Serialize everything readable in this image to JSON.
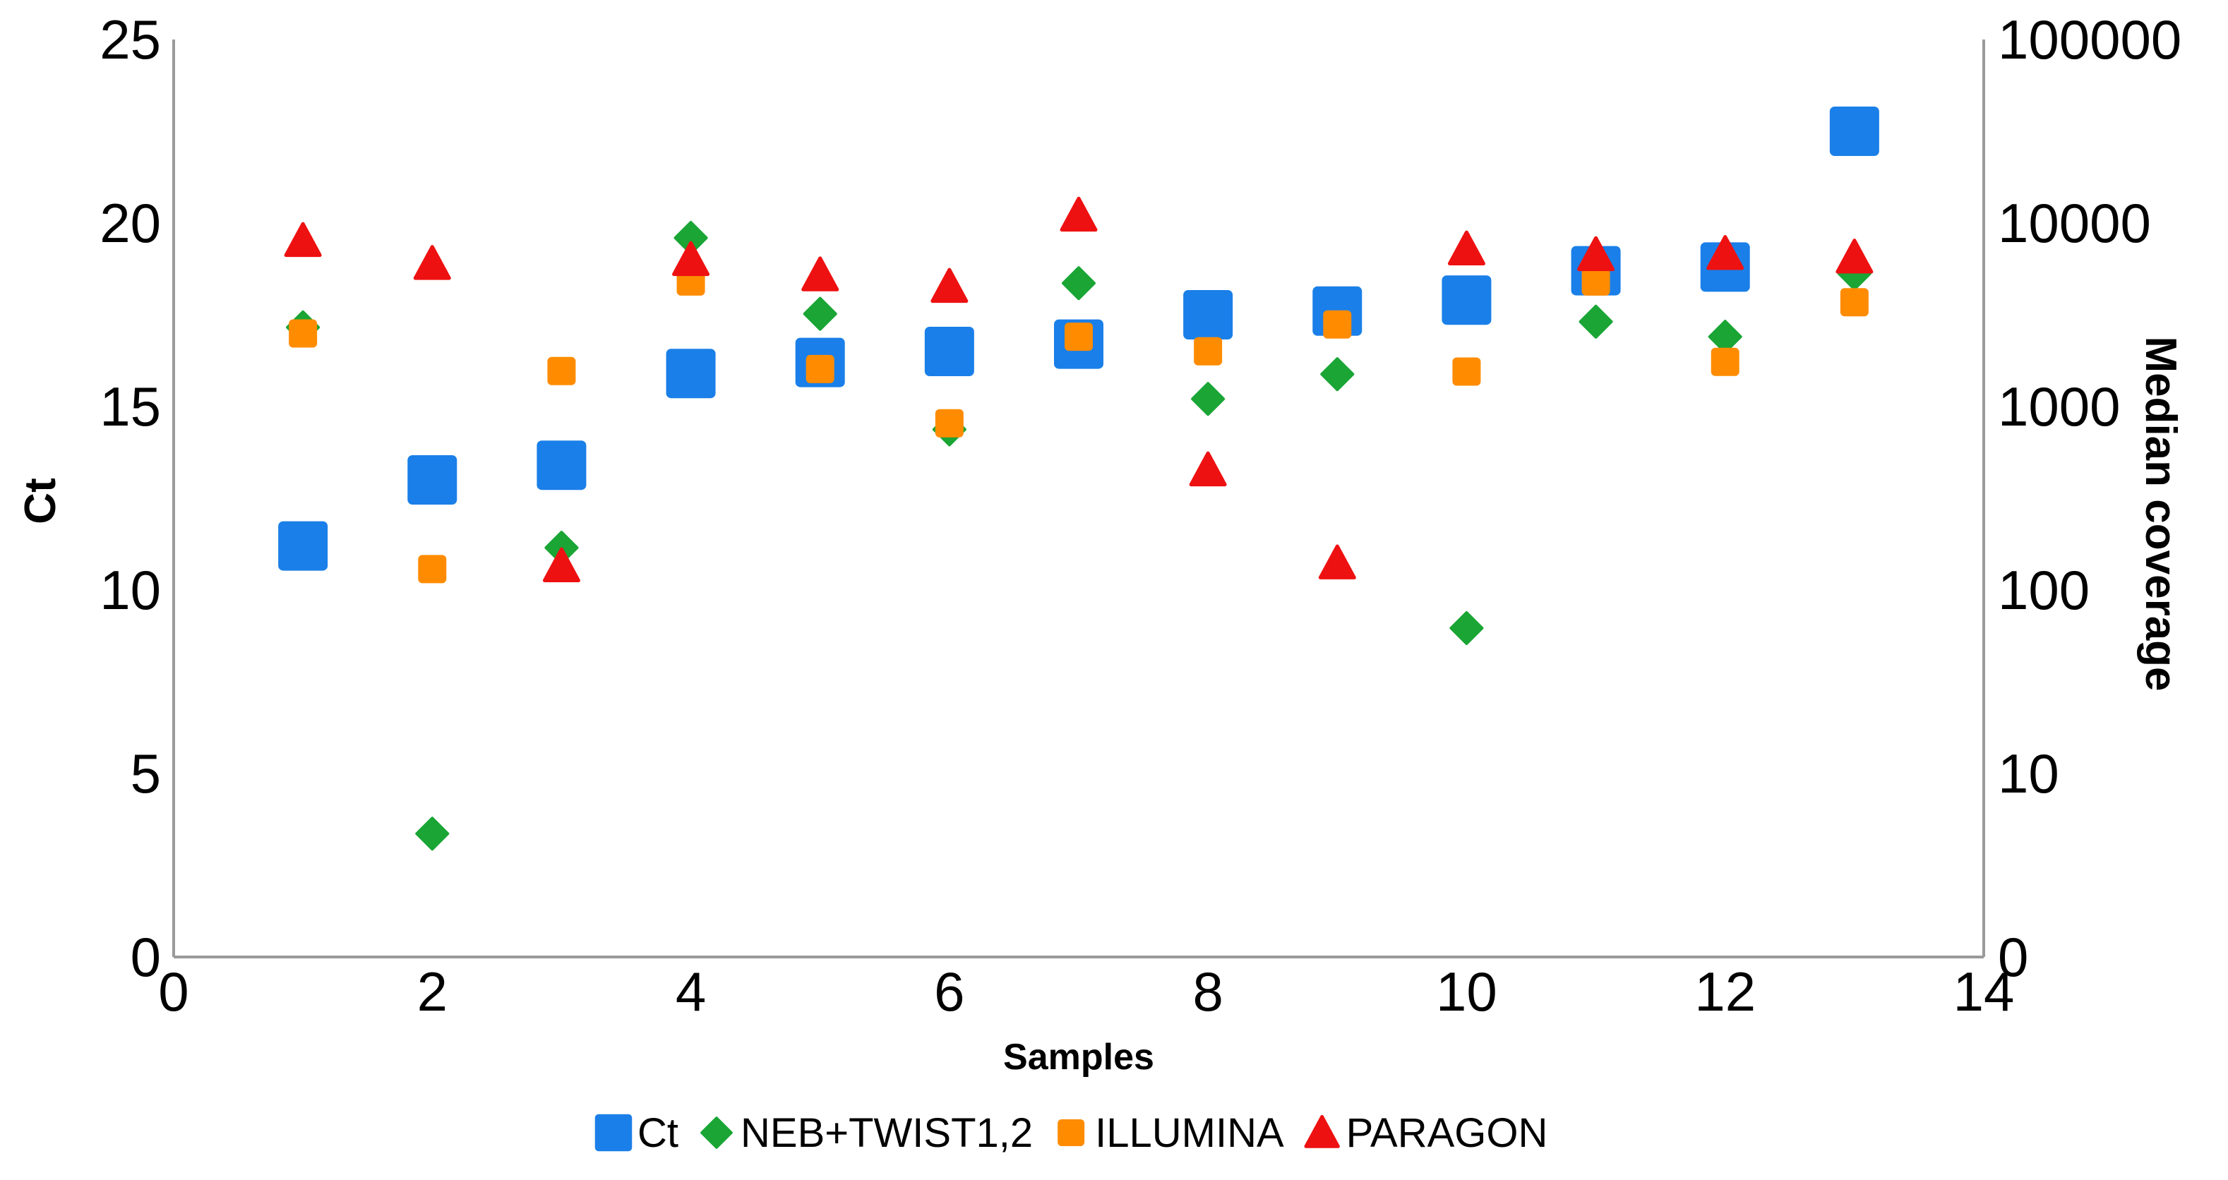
{
  "chart_data": {
    "type": "scatter",
    "xlabel": "Samples",
    "ylabel": "Ct",
    "y2label": "Median coverage",
    "xlim": [
      0,
      14
    ],
    "ylim": [
      0,
      25
    ],
    "y2_scale": "log",
    "y2_ticks": [
      "0",
      "10",
      "100",
      "1000",
      "10000",
      "100000"
    ],
    "x_ticks": [
      0,
      2,
      4,
      6,
      8,
      10,
      12,
      14
    ],
    "y_ticks": [
      0,
      5,
      10,
      15,
      20,
      25
    ],
    "grid": false,
    "legend_position": "bottom",
    "colors": {
      "Ct": "#1a7fe8",
      "NEB+TWIST1,2": "#1aa535",
      "ILLUMINA": "#ff8c00",
      "PARAGON": "#ee1111"
    },
    "series": [
      {
        "name": "Ct",
        "axis": "left",
        "marker": "square",
        "x": [
          1,
          2,
          3,
          4,
          5,
          6,
          7,
          8,
          9,
          10,
          11,
          12,
          13
        ],
        "values": [
          11.2,
          13.0,
          13.4,
          15.9,
          16.2,
          16.5,
          16.7,
          17.5,
          17.6,
          17.9,
          18.7,
          18.8,
          22.5
        ]
      },
      {
        "name": "NEB+TWIST1,2",
        "axis": "right",
        "marker": "diamond",
        "x": [
          1,
          2,
          3,
          4,
          5,
          6,
          7,
          8,
          9,
          10,
          11,
          12,
          13
        ],
        "values": [
          2700,
          4.7,
          170,
          8300,
          3200,
          750,
          4700,
          1100,
          1500,
          62,
          2900,
          2400,
          5300
        ]
      },
      {
        "name": "ILLUMINA",
        "axis": "right",
        "marker": "rounded-square",
        "x": [
          1,
          2,
          3,
          4,
          5,
          6,
          7,
          8,
          9,
          10,
          11,
          12,
          13
        ],
        "values": [
          2500,
          130,
          1560,
          4800,
          1600,
          810,
          2400,
          2000,
          2800,
          1550,
          4800,
          1750,
          3700
        ]
      },
      {
        "name": "PARAGON",
        "axis": "right",
        "marker": "triangle",
        "x": [
          1,
          2,
          3,
          4,
          5,
          6,
          7,
          8,
          9,
          10,
          11,
          12,
          13
        ],
        "values": [
          8000,
          6000,
          135,
          6300,
          5200,
          4500,
          11000,
          450,
          140,
          7200,
          6700,
          6800,
          6500
        ]
      }
    ]
  }
}
